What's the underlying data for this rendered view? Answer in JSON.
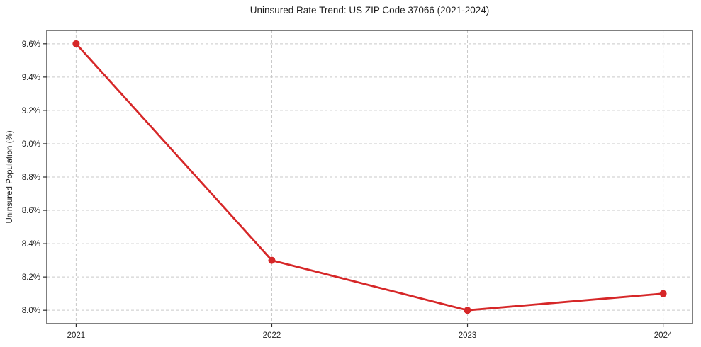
{
  "chart_data": {
    "type": "line",
    "title": "Uninsured Rate Trend: US ZIP Code 37066 (2021-2024)",
    "xlabel": "",
    "ylabel": "Uninsured Population (%)",
    "x": [
      2021,
      2022,
      2023,
      2024
    ],
    "values": [
      9.6,
      8.3,
      8.0,
      8.1
    ],
    "xtick_labels": [
      "2021",
      "2022",
      "2023",
      "2024"
    ],
    "ytick_values": [
      8.0,
      8.2,
      8.4,
      8.6,
      8.8,
      9.0,
      9.2,
      9.4,
      9.6
    ],
    "ytick_labels": [
      "8.0%",
      "8.2%",
      "8.4%",
      "8.6%",
      "8.8%",
      "9.0%",
      "9.2%",
      "9.4%",
      "9.6%"
    ],
    "xlim": [
      2020.85,
      2024.15
    ],
    "ylim": [
      7.92,
      9.68
    ],
    "grid": true,
    "grid_style": "dashed",
    "legend": "none",
    "marker": "circle",
    "line_color": "#d62728",
    "grid_color": "#c9c9c9",
    "axis_color": "#2b2b2b",
    "text_color": "#1f1f1f",
    "background": "#ffffff"
  }
}
